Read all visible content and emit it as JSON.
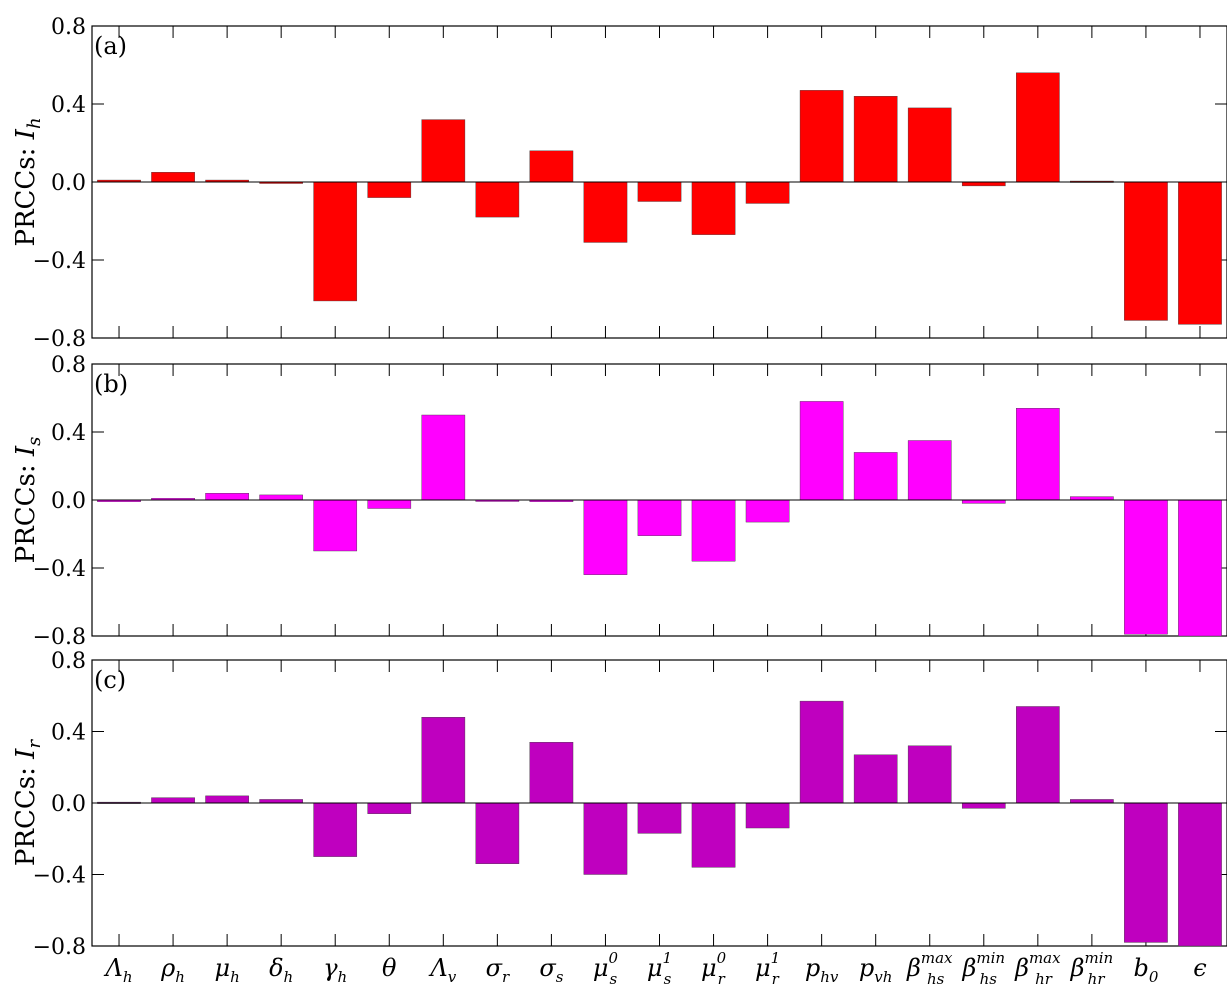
{
  "chart_data": {
    "type": "bar",
    "categories": [
      {
        "base": "Λ",
        "sub": "h"
      },
      {
        "base": "ρ",
        "sub": "h"
      },
      {
        "base": "μ",
        "sub": "h"
      },
      {
        "base": "δ",
        "sub": "h"
      },
      {
        "base": "γ",
        "sub": "h"
      },
      {
        "base": "θ"
      },
      {
        "base": "Λ",
        "sub": "v"
      },
      {
        "base": "σ",
        "sub": "r"
      },
      {
        "base": "σ",
        "sub": "s"
      },
      {
        "base": "μ",
        "sub": "s",
        "sup": "0"
      },
      {
        "base": "μ",
        "sub": "s",
        "sup": "1"
      },
      {
        "base": "μ",
        "sub": "r",
        "sup": "0"
      },
      {
        "base": "μ",
        "sub": "r",
        "sup": "1"
      },
      {
        "base": "p",
        "sub": "hv"
      },
      {
        "base": "p",
        "sub": "vh"
      },
      {
        "base": "β",
        "sub": "hs",
        "sup": "max"
      },
      {
        "base": "β",
        "sub": "hs",
        "sup": "min"
      },
      {
        "base": "β",
        "sub": "hr",
        "sup": "max"
      },
      {
        "base": "β",
        "sub": "hr",
        "sup": "min"
      },
      {
        "base": "b",
        "sub": "0"
      },
      {
        "base": "ϵ"
      }
    ],
    "ylim": [
      -0.8,
      0.8
    ],
    "yticks": [
      "0.8",
      "0.4",
      "0.0",
      "−0.4",
      "−0.8"
    ],
    "panels": [
      {
        "tag": "(a)",
        "ylabel_prefix": "PRCCs: ",
        "ylabel_var": "I",
        "ylabel_sub": "h",
        "color": "#ff0000",
        "values": [
          0.01,
          0.05,
          0.01,
          -0.005,
          -0.61,
          -0.08,
          0.32,
          -0.18,
          0.16,
          -0.31,
          -0.1,
          -0.27,
          -0.11,
          0.47,
          0.44,
          0.38,
          -0.02,
          0.56,
          0.005,
          -0.71,
          -0.73
        ]
      },
      {
        "tag": "(b)",
        "ylabel_prefix": "PRCCs: ",
        "ylabel_var": "I",
        "ylabel_sub": "s",
        "color": "#ff00ff",
        "values": [
          -0.01,
          0.01,
          0.04,
          0.03,
          -0.3,
          -0.05,
          0.5,
          -0.005,
          -0.01,
          -0.44,
          -0.21,
          -0.36,
          -0.13,
          0.58,
          0.28,
          0.35,
          -0.02,
          0.54,
          0.02,
          -0.79,
          -0.8
        ]
      },
      {
        "tag": "(c)",
        "ylabel_prefix": "PRCCs: ",
        "ylabel_var": "I",
        "ylabel_sub": "r",
        "color": "#bf00bf",
        "values": [
          0.005,
          0.03,
          0.04,
          0.02,
          -0.3,
          -0.06,
          0.48,
          -0.34,
          0.34,
          -0.4,
          -0.17,
          -0.36,
          -0.14,
          0.57,
          0.27,
          0.32,
          -0.03,
          0.54,
          0.02,
          -0.78,
          -0.8
        ]
      }
    ]
  }
}
